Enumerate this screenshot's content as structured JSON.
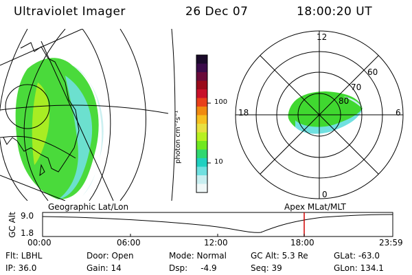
{
  "header": {
    "instrument": "Ultraviolet Imager",
    "date": "26 Dec 07",
    "time": "18:00:20 UT"
  },
  "colorbar": {
    "unit_label": "photon cm⁻²s⁻¹",
    "ticks": [
      "100",
      "10"
    ],
    "colors": [
      "#1a0a2a",
      "#3b0b4a",
      "#6a0b3a",
      "#9a0a1a",
      "#c8102a",
      "#e8401a",
      "#f08a10",
      "#f6c020",
      "#e8e040",
      "#b8f020",
      "#70e820",
      "#30d870",
      "#20d0c0",
      "#70e0e0",
      "#c8eef0",
      "#f0f8f8"
    ]
  },
  "panels": {
    "left_label": "Geographic Lat/Lon",
    "right_label": "Apex MLat/MLT",
    "polar_mlt_labels": [
      "12",
      "18",
      "6",
      "0"
    ],
    "polar_lat_labels": [
      "60",
      "70",
      "80"
    ]
  },
  "timeline": {
    "y_label": "GC Alt",
    "y_ticks": [
      "9.0",
      "1.8"
    ],
    "x_ticks": [
      "00:00",
      "06:00",
      "12:00",
      "18:00",
      "23:59"
    ],
    "current_marker": "18:00",
    "marker_color": "#d00000"
  },
  "info": {
    "row1": [
      "Flt: LBHL",
      "Door: Open",
      "Mode: Normal",
      "GC Alt: 5.3 Re",
      "GLat: -63.0"
    ],
    "row2": [
      "IP: 36.0",
      "Gain: 14",
      "Dsp:     -4.9",
      "Seq: 39",
      "GLon: 134.1"
    ]
  }
}
